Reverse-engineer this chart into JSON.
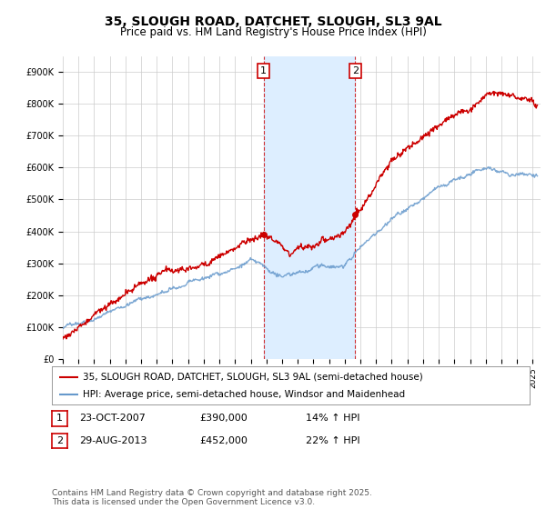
{
  "title": "35, SLOUGH ROAD, DATCHET, SLOUGH, SL3 9AL",
  "subtitle": "Price paid vs. HM Land Registry's House Price Index (HPI)",
  "ylabel_ticks": [
    "£0",
    "£100K",
    "£200K",
    "£300K",
    "£400K",
    "£500K",
    "£600K",
    "£700K",
    "£800K",
    "£900K"
  ],
  "ytick_values": [
    0,
    100000,
    200000,
    300000,
    400000,
    500000,
    600000,
    700000,
    800000,
    900000
  ],
  "ylim": [
    0,
    950000
  ],
  "xlim_start": 1995.0,
  "xlim_end": 2025.5,
  "sale1": {
    "date_label": "23-OCT-2007",
    "price": 390000,
    "hpi_pct": "14% ↑ HPI",
    "year": 2007.81
  },
  "sale2": {
    "date_label": "29-AUG-2013",
    "price": 452000,
    "hpi_pct": "22% ↑ HPI",
    "year": 2013.66
  },
  "vline1_x": 2007.81,
  "vline2_x": 2013.66,
  "legend_label_red": "35, SLOUGH ROAD, DATCHET, SLOUGH, SL3 9AL (semi-detached house)",
  "legend_label_blue": "HPI: Average price, semi-detached house, Windsor and Maidenhead",
  "footer": "Contains HM Land Registry data © Crown copyright and database right 2025.\nThis data is licensed under the Open Government Licence v3.0.",
  "red_color": "#cc0000",
  "blue_color": "#6699cc",
  "shade_color": "#ddeeff",
  "vline_color": "#cc0000",
  "background_color": "#ffffff",
  "grid_color": "#cccccc",
  "title_fontsize": 10,
  "subtitle_fontsize": 8.5,
  "tick_fontsize": 7,
  "legend_fontsize": 7.5,
  "table_fontsize": 8,
  "footer_fontsize": 6.5
}
